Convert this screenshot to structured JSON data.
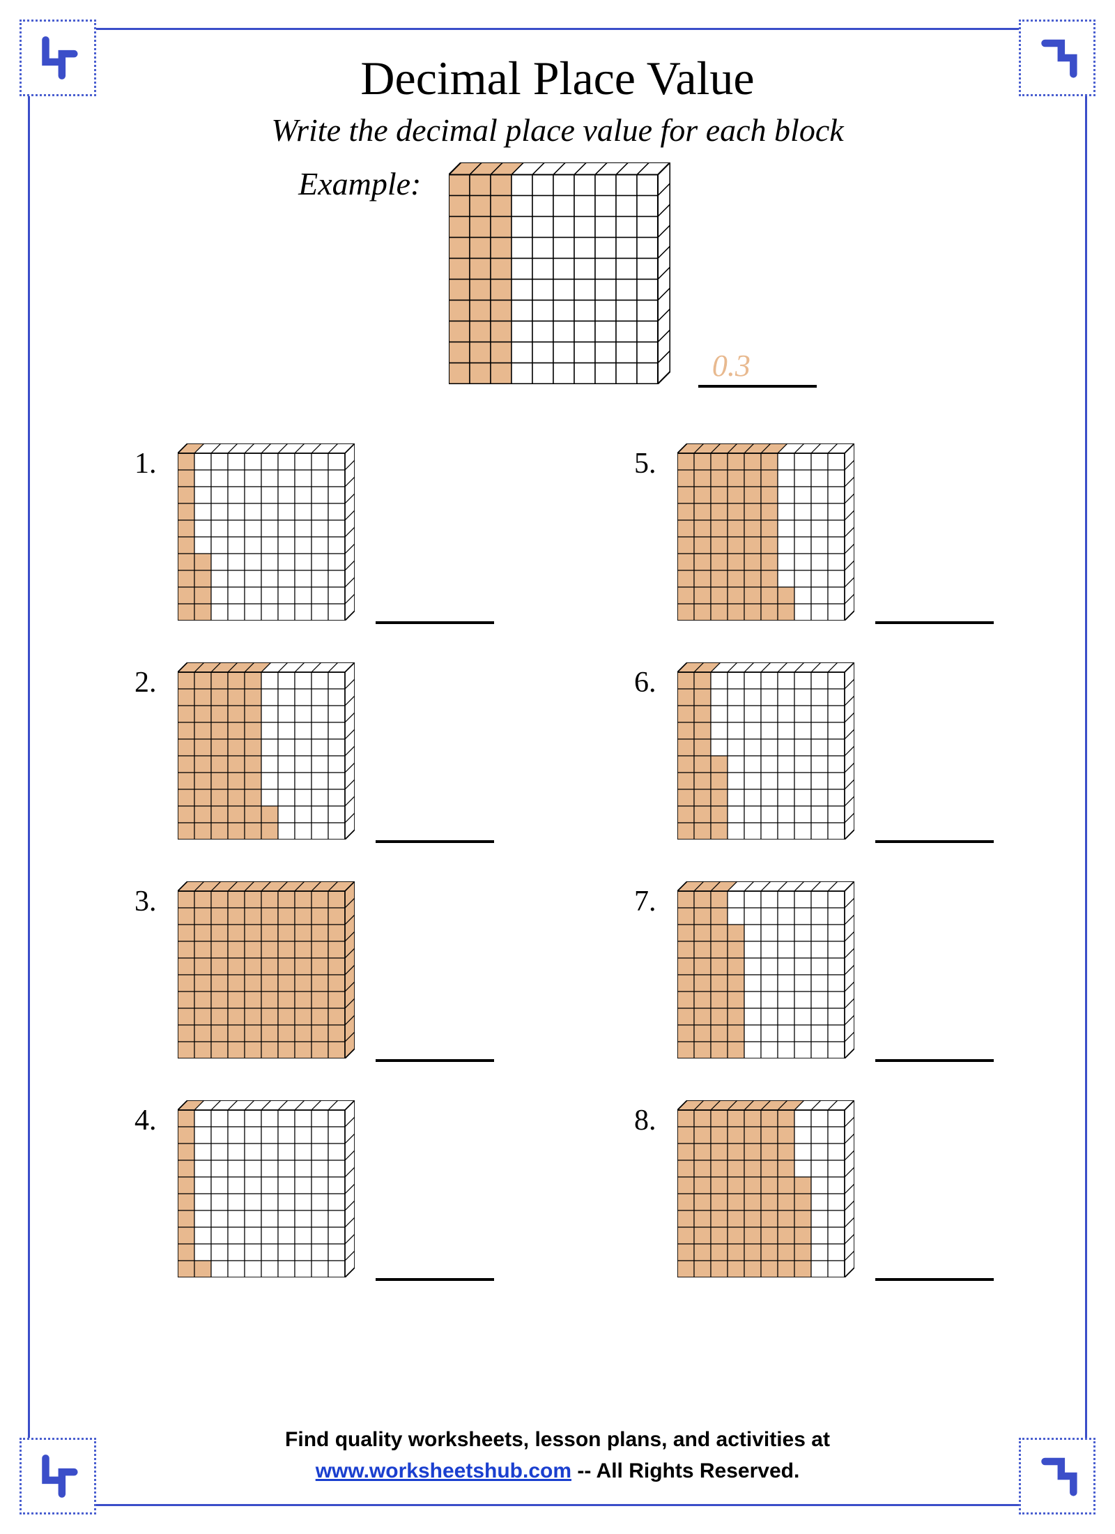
{
  "title": "Decimal Place Value",
  "subtitle": "Write the decimal place value for each block",
  "example_label": "Example:",
  "example_answer": "0.3",
  "colors": {
    "border": "#3b4ec9",
    "fill": "#e8b98f",
    "line": "#000000",
    "answer_text": "#e8b98f",
    "corner_dot": "#4a5fd0"
  },
  "block": {
    "grid": 10,
    "cell": 24,
    "depth": 14,
    "example_scale": 1.25
  },
  "example_block": {
    "full_cols": 3,
    "extra": 0
  },
  "problems": [
    {
      "num": "1.",
      "full_cols": 1,
      "extra": 4
    },
    {
      "num": "2.",
      "full_cols": 5,
      "extra": 2
    },
    {
      "num": "3.",
      "full_cols": 10,
      "extra": 0
    },
    {
      "num": "4.",
      "full_cols": 1,
      "extra": 1
    },
    {
      "num": "5.",
      "full_cols": 6,
      "extra": 2
    },
    {
      "num": "6.",
      "full_cols": 2,
      "extra": 5
    },
    {
      "num": "7.",
      "full_cols": 3,
      "extra": 8
    },
    {
      "num": "8.",
      "full_cols": 7,
      "extra": 6
    }
  ],
  "footer_line1": "Find quality worksheets, lesson plans, and activities at",
  "footer_link": "www.worksheetshub.com",
  "footer_line2_suffix": "  -- All Rights Reserved."
}
